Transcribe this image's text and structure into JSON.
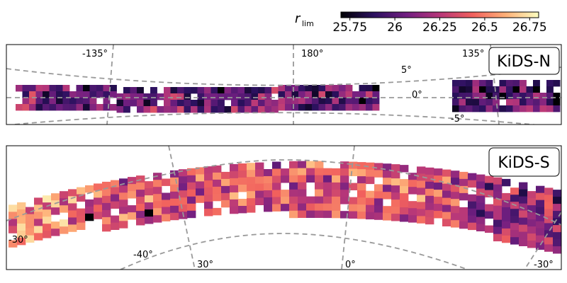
{
  "colorbar": {
    "label": "r",
    "label_sub": "lim",
    "ticks": [
      "25.75",
      "26",
      "26.25",
      "26.5",
      "26.75"
    ],
    "tick_values": [
      25.75,
      26.0,
      26.25,
      26.5,
      26.75
    ],
    "range": [
      25.7,
      26.8
    ],
    "colormap": [
      "#000004",
      "#2c115f",
      "#721f81",
      "#b73779",
      "#f1605d",
      "#feb078",
      "#fcfdbf"
    ]
  },
  "chart_data": [
    {
      "type": "heatmap",
      "title": "KiDS-N",
      "projection": "zenithal",
      "ra_grid_labels": [
        "-135°",
        "180°",
        "135°"
      ],
      "ra_grid_values": [
        -135,
        180,
        135
      ],
      "dec_grid_labels": [
        "5°",
        "0°",
        "-5°"
      ],
      "dec_grid_values": [
        5,
        0,
        -5
      ],
      "footprint_dec_range": [
        -2.5,
        2.5
      ],
      "segments": [
        {
          "ra_range": [
            157,
            225
          ],
          "mean_rlim": 26.05
        },
        {
          "ra_range": [
            129,
            140
          ],
          "mean_rlim": 26.0
        }
      ],
      "grid": true
    },
    {
      "type": "heatmap",
      "title": "KiDS-S",
      "projection": "zenithal",
      "ra_grid_labels": [
        "30°",
        "0°",
        "-30°"
      ],
      "ra_grid_values": [
        30,
        0,
        -30
      ],
      "dec_grid_labels": [
        "-30°",
        "-40°",
        "-30°"
      ],
      "dec_grid_values": [
        -30,
        -40,
        -30
      ],
      "footprint_dec_range": [
        -36,
        -26
      ],
      "footprint_ra_range": [
        -30,
        52
      ],
      "mean_rlim": 26.35,
      "grid": true
    }
  ]
}
